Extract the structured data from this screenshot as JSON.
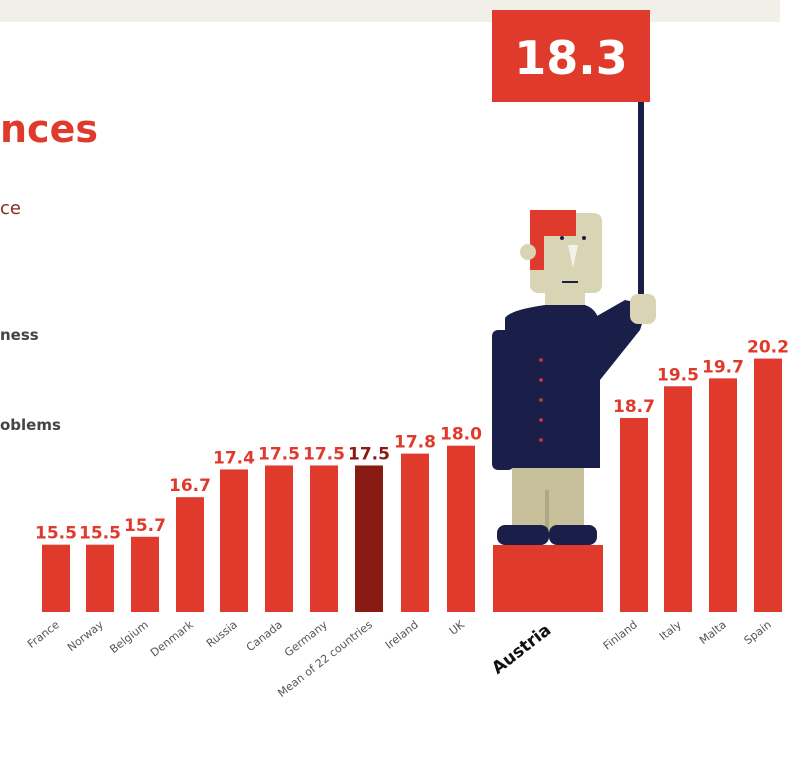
{
  "chart_data": {
    "type": "bar",
    "texts": [
      "nces",
      "ce",
      "ness",
      "oblems"
    ],
    "categories": [
      "France",
      "Norway",
      "Belgium",
      "Denmark",
      "Russia",
      "Canada",
      "Germany",
      "Mean of 22 countries",
      "Ireland",
      "UK",
      "Austria",
      "Finland",
      "Italy",
      "Malta",
      "Spain"
    ],
    "values": [
      15.5,
      15.5,
      15.7,
      16.7,
      17.4,
      17.5,
      17.5,
      17.5,
      17.8,
      18.0,
      18.3,
      18.7,
      19.5,
      19.7,
      20.2
    ],
    "value_labels": [
      "15.5",
      "15.5",
      "15.7",
      "16.7",
      "17.4",
      "17.5",
      "17.5",
      "17.5",
      "17.8",
      "18.0",
      "18.3",
      "18.7",
      "19.5",
      "19.7",
      "20.2"
    ],
    "colors": [
      "#e03a2c",
      "#e03a2c",
      "#e03a2c",
      "#e03a2c",
      "#e03a2c",
      "#e03a2c",
      "#e03a2c",
      "#8a1a14",
      "#e03a2c",
      "#e03a2c",
      "#e03a2c",
      "#e03a2c",
      "#e03a2c",
      "#e03a2c",
      "#e03a2c"
    ],
    "highlight": "Austria",
    "ylim": [
      13.8,
      22
    ]
  }
}
